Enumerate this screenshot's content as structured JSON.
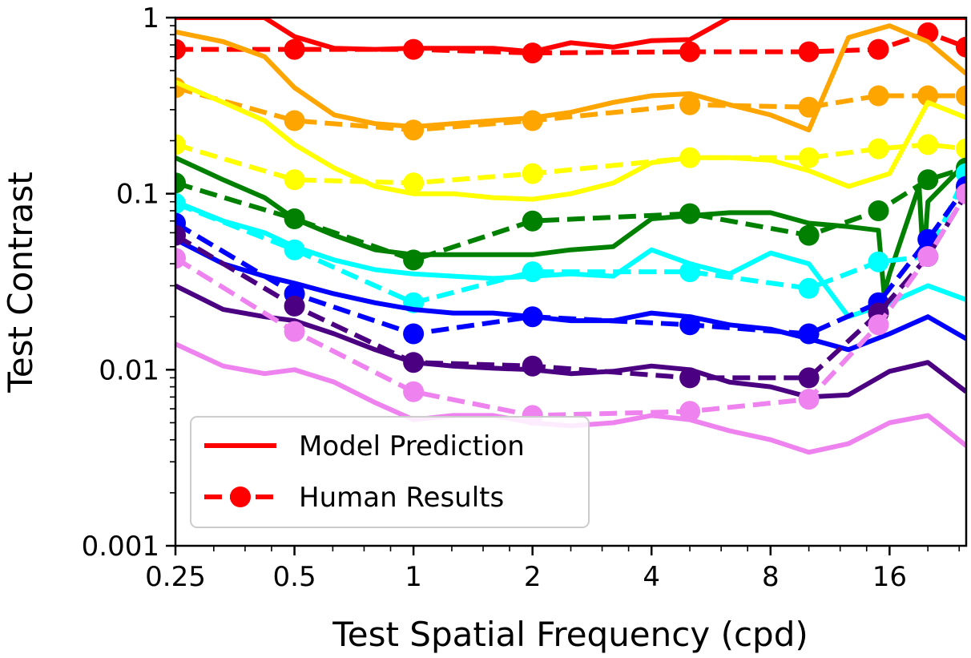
{
  "chart_data": {
    "type": "line",
    "title": "",
    "xlabel": "Test Spatial Frequency (cpd)",
    "ylabel": "Test Contrast",
    "x_scale": "log2",
    "y_scale": "log10",
    "xlim": [
      0.25,
      25
    ],
    "ylim": [
      0.001,
      1
    ],
    "x_ticks": [
      {
        "value": 0.25,
        "label": "0.25"
      },
      {
        "value": 0.5,
        "label": "0.5"
      },
      {
        "value": 1,
        "label": "1"
      },
      {
        "value": 2,
        "label": "2"
      },
      {
        "value": 4,
        "label": "4"
      },
      {
        "value": 8,
        "label": "8"
      },
      {
        "value": 16,
        "label": "16"
      }
    ],
    "y_ticks": [
      {
        "value": 0.001,
        "label": "0.001"
      },
      {
        "value": 0.01,
        "label": "0.01"
      },
      {
        "value": 0.1,
        "label": "0.1"
      },
      {
        "value": 1,
        "label": "1"
      }
    ],
    "grid": false,
    "legend": {
      "position": "bottom-left",
      "entries": [
        {
          "label": "Model Prediction",
          "style": "solid",
          "color": "#ff0000"
        },
        {
          "label": "Human Results",
          "style": "dashed-marker",
          "color": "#ff0000"
        }
      ]
    },
    "series": [
      {
        "color": "#ff0000",
        "model": {
          "x": [
            0.25,
            0.33,
            0.42,
            0.5,
            0.63,
            0.8,
            1,
            1.26,
            1.59,
            2,
            2.5,
            3.2,
            4,
            5,
            6.3,
            8,
            10,
            12.6,
            16,
            20,
            25
          ],
          "y": [
            1.0,
            1.0,
            1.0,
            0.78,
            0.67,
            0.66,
            0.67,
            0.67,
            0.67,
            0.64,
            0.72,
            0.68,
            0.74,
            0.75,
            1.0,
            1.0,
            1.0,
            1.0,
            1.0,
            1.0,
            1.0
          ]
        },
        "human": {
          "x": [
            0.25,
            0.5,
            1,
            2,
            5,
            10,
            15,
            20,
            25
          ],
          "y": [
            0.66,
            0.66,
            0.66,
            0.63,
            0.64,
            0.64,
            0.66,
            0.82,
            0.68
          ]
        }
      },
      {
        "color": "#ffa500",
        "model": {
          "x": [
            0.25,
            0.33,
            0.42,
            0.5,
            0.63,
            0.8,
            1,
            1.26,
            1.59,
            2,
            2.5,
            3.2,
            4,
            5,
            6.3,
            8,
            10,
            12.6,
            16,
            20,
            25
          ],
          "y": [
            0.83,
            0.73,
            0.6,
            0.4,
            0.28,
            0.25,
            0.24,
            0.25,
            0.26,
            0.27,
            0.29,
            0.33,
            0.36,
            0.37,
            0.32,
            0.28,
            0.23,
            0.77,
            0.9,
            0.73,
            0.48
          ]
        },
        "human": {
          "x": [
            0.25,
            0.5,
            1,
            2,
            5,
            10,
            15,
            20,
            25
          ],
          "y": [
            0.4,
            0.26,
            0.23,
            0.26,
            0.32,
            0.31,
            0.36,
            0.36,
            0.36
          ]
        }
      },
      {
        "color": "#ffff00",
        "model": {
          "x": [
            0.25,
            0.33,
            0.42,
            0.5,
            0.63,
            0.8,
            1,
            1.26,
            1.59,
            2,
            2.5,
            3.2,
            4,
            5,
            6.3,
            8,
            10,
            12.6,
            16,
            20,
            25
          ],
          "y": [
            0.43,
            0.33,
            0.26,
            0.19,
            0.14,
            0.11,
            0.1,
            0.1,
            0.095,
            0.093,
            0.1,
            0.115,
            0.15,
            0.16,
            0.16,
            0.155,
            0.135,
            0.11,
            0.13,
            0.33,
            0.27
          ]
        },
        "human": {
          "x": [
            0.25,
            0.5,
            1,
            2,
            5,
            10,
            15,
            20,
            25
          ],
          "y": [
            0.19,
            0.12,
            0.115,
            0.13,
            0.16,
            0.16,
            0.18,
            0.19,
            0.18
          ]
        }
      },
      {
        "color": "#008000",
        "model": {
          "x": [
            0.25,
            0.33,
            0.42,
            0.5,
            0.63,
            0.8,
            1,
            1.26,
            1.59,
            2,
            2.5,
            3.2,
            4,
            5,
            6.3,
            8,
            10,
            12.6,
            15,
            15.5,
            16,
            19,
            19.5,
            20,
            25
          ],
          "y": [
            0.16,
            0.12,
            0.095,
            0.072,
            0.058,
            0.048,
            0.045,
            0.045,
            0.045,
            0.045,
            0.048,
            0.05,
            0.072,
            0.075,
            0.078,
            0.078,
            0.068,
            0.065,
            0.062,
            0.027,
            0.035,
            0.11,
            0.04,
            0.09,
            0.15
          ]
        },
        "human": {
          "x": [
            0.25,
            0.5,
            1,
            2,
            5,
            10,
            15,
            20,
            25
          ],
          "y": [
            0.115,
            0.072,
            0.042,
            0.07,
            0.077,
            0.058,
            0.08,
            0.12,
            0.14
          ]
        }
      },
      {
        "color": "#00ffff",
        "model": {
          "x": [
            0.25,
            0.33,
            0.42,
            0.5,
            0.63,
            0.8,
            1,
            1.26,
            1.59,
            2,
            2.5,
            3.2,
            4,
            5,
            6.3,
            8,
            10,
            12.6,
            16,
            20,
            25
          ],
          "y": [
            0.09,
            0.07,
            0.06,
            0.05,
            0.042,
            0.037,
            0.035,
            0.034,
            0.033,
            0.034,
            0.035,
            0.034,
            0.048,
            0.04,
            0.035,
            0.046,
            0.04,
            0.02,
            0.024,
            0.03,
            0.025
          ]
        },
        "human": {
          "x": [
            0.25,
            0.5,
            1,
            2,
            5,
            10,
            15,
            20,
            25
          ],
          "y": [
            0.088,
            0.048,
            0.024,
            0.036,
            0.036,
            0.029,
            0.041,
            0.044,
            0.13
          ]
        }
      },
      {
        "color": "#0000ff",
        "model": {
          "x": [
            0.25,
            0.33,
            0.42,
            0.5,
            0.63,
            0.8,
            1,
            1.26,
            1.59,
            2,
            2.5,
            3.2,
            4,
            5,
            6.3,
            8,
            10,
            12.6,
            16,
            20,
            25
          ],
          "y": [
            0.055,
            0.04,
            0.034,
            0.031,
            0.027,
            0.024,
            0.022,
            0.021,
            0.021,
            0.02,
            0.019,
            0.019,
            0.021,
            0.02,
            0.018,
            0.017,
            0.015,
            0.013,
            0.016,
            0.02,
            0.015
          ]
        },
        "human": {
          "x": [
            0.25,
            0.5,
            1,
            2,
            5,
            10,
            15,
            20,
            25
          ],
          "y": [
            0.068,
            0.027,
            0.016,
            0.02,
            0.018,
            0.016,
            0.024,
            0.055,
            0.11
          ]
        }
      },
      {
        "color": "#4b0082",
        "model": {
          "x": [
            0.25,
            0.33,
            0.42,
            0.5,
            0.63,
            0.8,
            1,
            1.26,
            1.59,
            2,
            2.5,
            3.2,
            4,
            5,
            6.3,
            8,
            10,
            12.6,
            16,
            20,
            25
          ],
          "y": [
            0.03,
            0.022,
            0.02,
            0.019,
            0.016,
            0.013,
            0.011,
            0.0105,
            0.0102,
            0.01,
            0.0095,
            0.0098,
            0.0105,
            0.01,
            0.0085,
            0.008,
            0.007,
            0.0072,
            0.0098,
            0.011,
            0.0075
          ]
        },
        "human": {
          "x": [
            0.25,
            0.5,
            1,
            2,
            5,
            10,
            15,
            20,
            25
          ],
          "y": [
            0.058,
            0.023,
            0.011,
            0.0105,
            0.009,
            0.009,
            0.021,
            0.044,
            0.1
          ]
        }
      },
      {
        "color": "#ee82ee",
        "model": {
          "x": [
            0.25,
            0.33,
            0.42,
            0.5,
            0.63,
            0.8,
            1,
            1.26,
            1.59,
            2,
            2.5,
            3.2,
            4,
            5,
            6.3,
            8,
            10,
            12.6,
            16,
            20,
            25
          ],
          "y": [
            0.014,
            0.0105,
            0.0095,
            0.01,
            0.0085,
            0.0065,
            0.0052,
            0.0055,
            0.0055,
            0.005,
            0.0048,
            0.005,
            0.0055,
            0.0052,
            0.0045,
            0.004,
            0.0034,
            0.0038,
            0.005,
            0.0055,
            0.0037
          ]
        },
        "human": {
          "x": [
            0.25,
            0.5,
            1,
            2,
            5,
            10,
            15,
            20,
            25
          ],
          "y": [
            0.043,
            0.0165,
            0.0075,
            0.0055,
            0.0058,
            0.0068,
            0.018,
            0.044,
            0.1
          ]
        }
      }
    ]
  }
}
